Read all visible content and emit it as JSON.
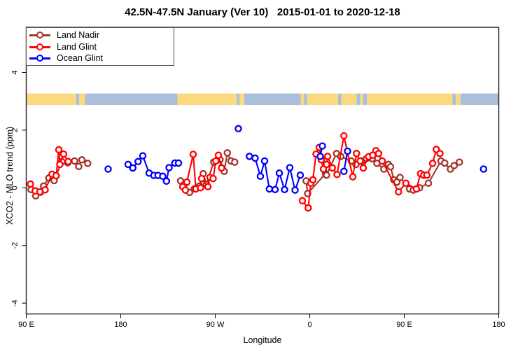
{
  "title": "42.5N-47.5N January (Ver 10)   2015-01-01 to 2020-12-18",
  "legend": {
    "items": [
      {
        "label": "Land Nadir",
        "color": "#A3342C"
      },
      {
        "label": "Land Glint",
        "color": "#FF0000"
      },
      {
        "label": "Ocean Glint",
        "color": "#0000FF"
      }
    ]
  },
  "chart_data": {
    "type": "line",
    "title": "42.5N-47.5N January (Ver 10)   2015-01-01 to 2020-12-18",
    "xlabel": "Longitude",
    "ylabel": "XCO2 - MLO trend (ppm)",
    "x_range": [
      90,
      540
    ],
    "ylim": [
      -4.4,
      5.6
    ],
    "grid": false,
    "legend_position": "top-left-inside",
    "x_ticks": [
      {
        "t": 90,
        "label": "90 E"
      },
      {
        "t": 180,
        "label": "180"
      },
      {
        "t": 270,
        "label": "90 W"
      },
      {
        "t": 360,
        "label": "0"
      },
      {
        "t": 450,
        "label": "90 E"
      },
      {
        "t": 540,
        "label": "180"
      }
    ],
    "y_ticks": [
      {
        "v": 4,
        "label": "4"
      },
      {
        "v": 2,
        "label": "2"
      },
      {
        "v": 0,
        "label": "0"
      },
      {
        "v": -2,
        "label": "-2"
      },
      {
        "v": -4,
        "label": "-4"
      }
    ],
    "map_band": {
      "v_range": [
        2.87,
        3.27
      ],
      "land_color": "#FCD97F",
      "ocean_color": "#A9C0DC",
      "segments": [
        {
          "from": 90,
          "to": 137.5,
          "type": "land"
        },
        {
          "from": 137.5,
          "to": 140.5,
          "type": "ocean"
        },
        {
          "from": 140.5,
          "to": 146,
          "type": "land"
        },
        {
          "from": 146,
          "to": 234,
          "type": "ocean"
        },
        {
          "from": 234,
          "to": 290.5,
          "type": "land"
        },
        {
          "from": 290.5,
          "to": 293,
          "type": "ocean"
        },
        {
          "from": 293,
          "to": 297.5,
          "type": "land"
        },
        {
          "from": 297.5,
          "to": 351.5,
          "type": "ocean"
        },
        {
          "from": 351.5,
          "to": 354.5,
          "type": "land"
        },
        {
          "from": 354.5,
          "to": 357.5,
          "type": "ocean"
        },
        {
          "from": 357.5,
          "to": 387,
          "type": "land"
        },
        {
          "from": 387,
          "to": 390,
          "type": "ocean"
        },
        {
          "from": 390,
          "to": 404.5,
          "type": "land"
        },
        {
          "from": 404.5,
          "to": 408,
          "type": "ocean"
        },
        {
          "from": 408,
          "to": 411,
          "type": "land"
        },
        {
          "from": 411,
          "to": 414.5,
          "type": "ocean"
        },
        {
          "from": 414.5,
          "to": 496,
          "type": "land"
        },
        {
          "from": 496,
          "to": 499,
          "type": "ocean"
        },
        {
          "from": 499,
          "to": 503.5,
          "type": "land"
        },
        {
          "from": 503.5,
          "to": 540,
          "type": "ocean"
        }
      ]
    },
    "series": [
      {
        "name": "Land Nadir",
        "color": "#A3342C",
        "segments": [
          [
            [
              94.5,
              -0.06
            ],
            [
              99,
              -0.28
            ],
            [
              103.5,
              -0.15
            ],
            [
              106.5,
              0.06
            ],
            [
              111.5,
              0.34
            ],
            [
              116.5,
              0.25
            ],
            [
              124,
              0.91
            ],
            [
              129.5,
              0.87
            ],
            [
              136,
              0.93
            ],
            [
              140,
              0.74
            ],
            [
              143,
              0.97
            ],
            [
              148.5,
              0.85
            ]
          ],
          [
            [
              237,
              0.24
            ],
            [
              240.5,
              0.12
            ],
            [
              245.5,
              -0.16
            ],
            [
              250,
              -0.04
            ],
            [
              255,
              0.06
            ],
            [
              258.5,
              0.49
            ],
            [
              261.5,
              0.12
            ],
            [
              268.5,
              0.89
            ],
            [
              274.5,
              0.98
            ],
            [
              278.5,
              0.57
            ],
            [
              281.5,
              1.21
            ],
            [
              285,
              0.93
            ],
            [
              288.5,
              0.89
            ]
          ],
          [
            [
              356.5,
              0.24
            ],
            [
              358,
              -0.2
            ],
            [
              375,
              0.49
            ],
            [
              376,
              0.44
            ],
            [
              385.5,
              1.19
            ],
            [
              389.5,
              1.09
            ],
            [
              399.5,
              0.93
            ],
            [
              404,
              0.81
            ],
            [
              409.5,
              0.93
            ],
            [
              414,
              1.01
            ],
            [
              419.5,
              1.01
            ],
            [
              424,
              0.85
            ],
            [
              430.5,
              0.65
            ],
            [
              435,
              0.81
            ],
            [
              437,
              0.73
            ],
            [
              440,
              0.28
            ],
            [
              443,
              0.2
            ],
            [
              446,
              0.36
            ],
            [
              455,
              -0.04
            ],
            [
              458.5,
              -0.08
            ],
            [
              464.5,
              0.0
            ],
            [
              473,
              0.16
            ],
            [
              485,
              0.93
            ],
            [
              488.5,
              0.86
            ],
            [
              494,
              0.65
            ],
            [
              497.5,
              0.77
            ],
            [
              502.5,
              0.89
            ]
          ]
        ]
      },
      {
        "name": "Land Glint",
        "color": "#FF0000",
        "segments": [
          [
            [
              94,
              0.13
            ],
            [
              98.5,
              -0.11
            ],
            [
              103,
              -0.14
            ],
            [
              108,
              -0.07
            ],
            [
              114.5,
              0.47
            ],
            [
              118.5,
              0.42
            ],
            [
              121,
              1.32
            ],
            [
              122,
              0.81
            ],
            [
              125.5,
              1.17
            ],
            [
              130,
              0.91
            ]
          ],
          [
            [
              239,
              0.04
            ],
            [
              241.5,
              -0.08
            ],
            [
              243,
              0.2
            ],
            [
              249,
              1.16
            ],
            [
              251.5,
              -0.04
            ],
            [
              256,
              0.0
            ],
            [
              257,
              0.32
            ],
            [
              263,
              0.04
            ],
            [
              265,
              0.36
            ],
            [
              268,
              0.32
            ],
            [
              270.5,
              0.93
            ],
            [
              273,
              1.13
            ],
            [
              276,
              0.69
            ]
          ],
          [
            [
              353,
              -0.45
            ],
            [
              358.5,
              -0.7
            ],
            [
              361,
              0.16
            ],
            [
              363,
              0.28
            ],
            [
              366,
              1.17
            ],
            [
              369,
              1.4
            ],
            [
              371,
              0.97
            ],
            [
              373,
              0.65
            ],
            [
              376,
              0.81
            ],
            [
              377,
              1.09
            ],
            [
              381.5,
              0.69
            ],
            [
              386,
              0.46
            ],
            [
              392.5,
              1.8
            ],
            [
              401,
              0.38
            ],
            [
              404.5,
              1.19
            ],
            [
              408,
              0.93
            ],
            [
              411,
              0.69
            ],
            [
              416,
              1.08
            ],
            [
              420,
              1.13
            ],
            [
              423,
              1.29
            ],
            [
              425.5,
              1.19
            ],
            [
              429,
              0.93
            ],
            [
              444.5,
              -0.14
            ],
            [
              451.5,
              0.16
            ],
            [
              461.5,
              -0.04
            ],
            [
              465.5,
              0.49
            ],
            [
              468.5,
              0.44
            ],
            [
              471.5,
              0.44
            ],
            [
              477,
              0.85
            ],
            [
              480.5,
              1.33
            ],
            [
              484,
              1.19
            ]
          ]
        ]
      },
      {
        "name": "Ocean Glint",
        "color": "#0000FF",
        "segments": [
          [
            [
              168,
              0.65
            ]
          ],
          [
            [
              187,
              0.81
            ],
            [
              191.5,
              0.69
            ],
            [
              196.5,
              0.91
            ],
            [
              201,
              1.11
            ],
            [
              207,
              0.51
            ],
            [
              211.5,
              0.43
            ],
            [
              215.5,
              0.43
            ],
            [
              220,
              0.4
            ],
            [
              223.5,
              0.23
            ],
            [
              226,
              0.7
            ],
            [
              231.5,
              0.86
            ],
            [
              235,
              0.86
            ]
          ],
          [
            [
              292,
              2.05
            ]
          ],
          [
            [
              302.5,
              1.09
            ],
            [
              308,
              1.03
            ],
            [
              313,
              0.4
            ],
            [
              317,
              0.93
            ],
            [
              321.5,
              -0.04
            ],
            [
              327,
              -0.06
            ],
            [
              331,
              0.51
            ],
            [
              336,
              -0.06
            ],
            [
              341,
              0.7
            ],
            [
              346,
              -0.08
            ],
            [
              351,
              0.44
            ]
          ],
          [
            [
              370,
              1.09
            ],
            [
              372,
              1.45
            ]
          ],
          [
            [
              392.5,
              0.57
            ],
            [
              396,
              1.27
            ]
          ],
          [
            [
              525.5,
              0.65
            ]
          ]
        ]
      }
    ]
  }
}
